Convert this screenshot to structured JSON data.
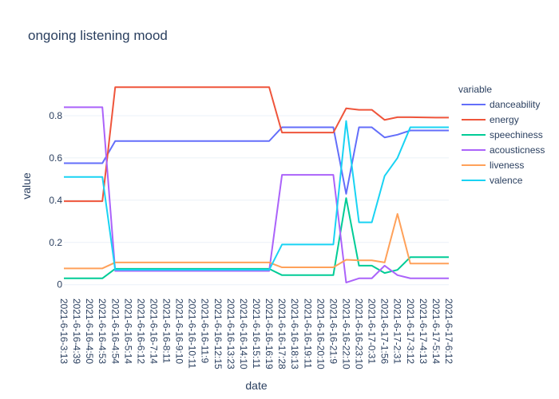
{
  "chart_data": {
    "type": "line",
    "title": "ongoing listening mood",
    "xlabel": "date",
    "ylabel": "value",
    "ylim": [
      -0.02,
      0.97
    ],
    "yticks": [
      0,
      0.2,
      0.4,
      0.6,
      0.8
    ],
    "ytick_labels": [
      "0",
      "0.2",
      "0.4",
      "0.6",
      "0.8"
    ],
    "grid": true,
    "legend": {
      "title": "variable",
      "position": "right"
    },
    "x": [
      "2021-6-16-3:13",
      "2021-6-16-4:39",
      "2021-6-16-4:50",
      "2021-6-16-4:53",
      "2021-6-16-4:54",
      "2021-6-16-5:14",
      "2021-6-16-6:12",
      "2021-6-16-7:14",
      "2021-6-16-8:11",
      "2021-6-16-9:10",
      "2021-6-16-10:11",
      "2021-6-16-11:9",
      "2021-6-16-12:15",
      "2021-6-16-13:23",
      "2021-6-16-14:10",
      "2021-6-16-15:11",
      "2021-6-16-16:19",
      "2021-6-16-17:28",
      "2021-6-16-18:13",
      "2021-6-16-19:11",
      "2021-6-16-20:10",
      "2021-6-16-21:9",
      "2021-6-16-22:10",
      "2021-6-16-23:10",
      "2021-6-17-0:31",
      "2021-6-17-1:56",
      "2021-6-17-2:31",
      "2021-6-17-3:12",
      "2021-6-17-4:13",
      "2021-6-17-5:14",
      "2021-6-17-6:12"
    ],
    "series": [
      {
        "name": "danceability",
        "color": "#636efa",
        "values": [
          0.575,
          0.575,
          0.575,
          0.575,
          0.68,
          0.68,
          0.68,
          0.68,
          0.68,
          0.68,
          0.68,
          0.68,
          0.68,
          0.68,
          0.68,
          0.68,
          0.68,
          0.745,
          0.745,
          0.745,
          0.745,
          0.745,
          0.43,
          0.745,
          0.745,
          0.697,
          0.71,
          0.73,
          0.73,
          0.73,
          0.73
        ]
      },
      {
        "name": "energy",
        "color": "#ef553b",
        "values": [
          0.395,
          0.395,
          0.395,
          0.395,
          0.935,
          0.935,
          0.935,
          0.935,
          0.935,
          0.935,
          0.935,
          0.935,
          0.935,
          0.935,
          0.935,
          0.935,
          0.935,
          0.72,
          0.72,
          0.72,
          0.72,
          0.72,
          0.835,
          0.828,
          0.828,
          0.78,
          0.793,
          0.793,
          0.792,
          0.791,
          0.791
        ]
      },
      {
        "name": "speechiness",
        "color": "#00cc96",
        "values": [
          0.03,
          0.03,
          0.03,
          0.03,
          0.075,
          0.075,
          0.075,
          0.075,
          0.075,
          0.075,
          0.075,
          0.075,
          0.075,
          0.075,
          0.075,
          0.075,
          0.075,
          0.045,
          0.045,
          0.045,
          0.045,
          0.045,
          0.41,
          0.09,
          0.09,
          0.055,
          0.07,
          0.13,
          0.13,
          0.13,
          0.13
        ]
      },
      {
        "name": "acousticness",
        "color": "#ab63fa",
        "values": [
          0.84,
          0.84,
          0.84,
          0.84,
          0.065,
          0.065,
          0.065,
          0.065,
          0.065,
          0.065,
          0.065,
          0.065,
          0.065,
          0.065,
          0.065,
          0.065,
          0.065,
          0.52,
          0.52,
          0.52,
          0.52,
          0.52,
          0.01,
          0.03,
          0.03,
          0.09,
          0.045,
          0.03,
          0.03,
          0.03,
          0.03
        ]
      },
      {
        "name": "liveness",
        "color": "#ffa15a",
        "values": [
          0.077,
          0.077,
          0.077,
          0.077,
          0.105,
          0.105,
          0.105,
          0.105,
          0.105,
          0.105,
          0.105,
          0.105,
          0.105,
          0.105,
          0.105,
          0.105,
          0.105,
          0.082,
          0.082,
          0.082,
          0.082,
          0.082,
          0.118,
          0.115,
          0.115,
          0.105,
          0.335,
          0.1,
          0.1,
          0.1,
          0.1
        ]
      },
      {
        "name": "valence",
        "color": "#19d3f3",
        "values": [
          0.51,
          0.51,
          0.51,
          0.51,
          0.07,
          0.07,
          0.07,
          0.07,
          0.07,
          0.07,
          0.07,
          0.07,
          0.07,
          0.07,
          0.07,
          0.07,
          0.07,
          0.19,
          0.19,
          0.19,
          0.19,
          0.19,
          0.775,
          0.295,
          0.295,
          0.515,
          0.6,
          0.745,
          0.745,
          0.745,
          0.745
        ]
      }
    ]
  }
}
